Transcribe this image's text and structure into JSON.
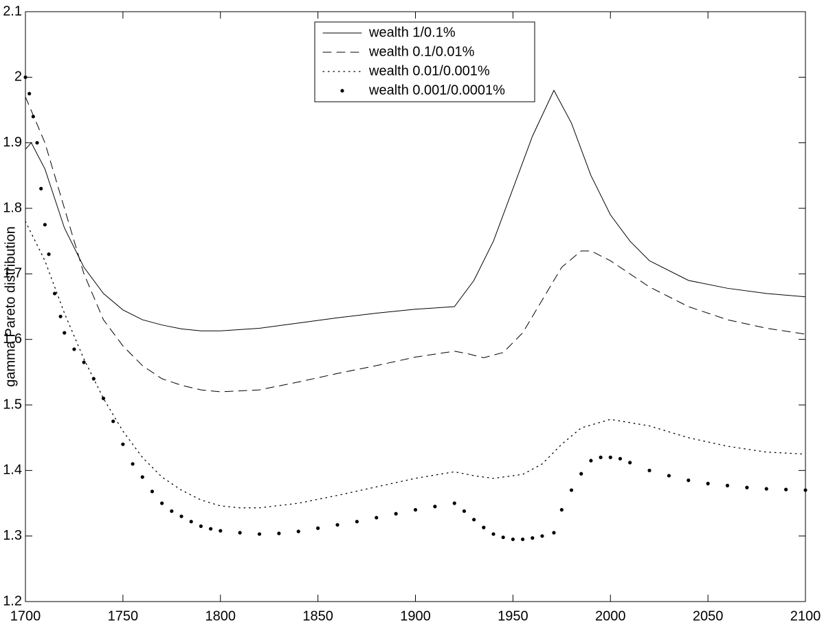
{
  "chart_data": {
    "type": "line",
    "ylabel": "gamma Pareto distribution",
    "xlim": [
      1700,
      2100
    ],
    "xticks": [
      1700,
      1750,
      1800,
      1850,
      1900,
      1950,
      2000,
      2050,
      2100
    ],
    "ylim": [
      1.2,
      2.1
    ],
    "yticks": [
      1.2,
      1.3,
      1.4,
      1.5,
      1.6,
      1.7,
      1.8,
      1.9,
      2,
      2.1
    ],
    "legend": "top-center",
    "series": [
      {
        "name": "wealth 1/0.1%",
        "color": "#000000",
        "style": "solid",
        "x": [
          1700,
          1703,
          1710,
          1720,
          1730,
          1740,
          1750,
          1760,
          1770,
          1780,
          1790,
          1800,
          1820,
          1840,
          1860,
          1880,
          1900,
          1920,
          1930,
          1940,
          1950,
          1960,
          1971,
          1980,
          1990,
          2000,
          2010,
          2020,
          2040,
          2060,
          2080,
          2100
        ],
        "values": [
          1.89,
          1.9,
          1.86,
          1.77,
          1.71,
          1.67,
          1.645,
          1.63,
          1.622,
          1.616,
          1.613,
          1.613,
          1.617,
          1.625,
          1.633,
          1.64,
          1.646,
          1.65,
          1.69,
          1.75,
          1.83,
          1.91,
          1.98,
          1.93,
          1.85,
          1.79,
          1.75,
          1.72,
          1.69,
          1.678,
          1.67,
          1.665
        ]
      },
      {
        "name": "wealth 0.1/0.01%",
        "color": "#000000",
        "style": "dashed",
        "x": [
          1700,
          1710,
          1720,
          1730,
          1740,
          1750,
          1760,
          1770,
          1780,
          1790,
          1800,
          1820,
          1840,
          1860,
          1880,
          1900,
          1920,
          1927,
          1935,
          1945,
          1955,
          1965,
          1975,
          1985,
          1990,
          2000,
          2020,
          2040,
          2060,
          2080,
          2100
        ],
        "values": [
          1.97,
          1.9,
          1.8,
          1.7,
          1.63,
          1.59,
          1.56,
          1.54,
          1.53,
          1.523,
          1.52,
          1.523,
          1.535,
          1.548,
          1.56,
          1.573,
          1.582,
          1.578,
          1.572,
          1.58,
          1.61,
          1.66,
          1.71,
          1.735,
          1.735,
          1.72,
          1.68,
          1.65,
          1.63,
          1.617,
          1.608
        ]
      },
      {
        "name": "wealth 0.01/0.001%",
        "color": "#000000",
        "style": "dotted",
        "x": [
          1700,
          1710,
          1720,
          1730,
          1740,
          1750,
          1760,
          1770,
          1780,
          1790,
          1800,
          1810,
          1820,
          1840,
          1860,
          1880,
          1900,
          1920,
          1930,
          1940,
          1955,
          1965,
          1975,
          1985,
          2000,
          2020,
          2040,
          2060,
          2080,
          2100
        ],
        "values": [
          1.78,
          1.72,
          1.64,
          1.57,
          1.51,
          1.46,
          1.42,
          1.39,
          1.37,
          1.355,
          1.346,
          1.343,
          1.343,
          1.35,
          1.362,
          1.375,
          1.388,
          1.398,
          1.392,
          1.388,
          1.394,
          1.41,
          1.44,
          1.465,
          1.478,
          1.468,
          1.45,
          1.437,
          1.428,
          1.425
        ]
      },
      {
        "name": "wealth 0.001/0.0001%",
        "color": "#000000",
        "style": "markers",
        "x": [
          1700,
          1702,
          1704,
          1706,
          1708,
          1710,
          1712,
          1715,
          1718,
          1720,
          1725,
          1730,
          1735,
          1740,
          1745,
          1750,
          1755,
          1760,
          1765,
          1770,
          1775,
          1780,
          1785,
          1790,
          1795,
          1800,
          1810,
          1820,
          1830,
          1840,
          1850,
          1860,
          1870,
          1880,
          1890,
          1900,
          1910,
          1920,
          1925,
          1930,
          1935,
          1940,
          1945,
          1950,
          1955,
          1960,
          1965,
          1971,
          1975,
          1980,
          1985,
          1990,
          1995,
          2000,
          2005,
          2010,
          2020,
          2030,
          2040,
          2050,
          2060,
          2070,
          2080,
          2090,
          2100
        ],
        "values": [
          2.0,
          1.975,
          1.94,
          1.9,
          1.83,
          1.775,
          1.73,
          1.67,
          1.635,
          1.61,
          1.585,
          1.565,
          1.54,
          1.51,
          1.475,
          1.44,
          1.41,
          1.39,
          1.368,
          1.35,
          1.338,
          1.33,
          1.322,
          1.315,
          1.311,
          1.308,
          1.305,
          1.303,
          1.304,
          1.307,
          1.312,
          1.317,
          1.322,
          1.328,
          1.334,
          1.34,
          1.345,
          1.35,
          1.338,
          1.325,
          1.313,
          1.303,
          1.298,
          1.295,
          1.295,
          1.297,
          1.3,
          1.305,
          1.34,
          1.37,
          1.395,
          1.415,
          1.42,
          1.42,
          1.418,
          1.412,
          1.4,
          1.392,
          1.385,
          1.38,
          1.377,
          1.374,
          1.372,
          1.371,
          1.37
        ]
      }
    ]
  }
}
